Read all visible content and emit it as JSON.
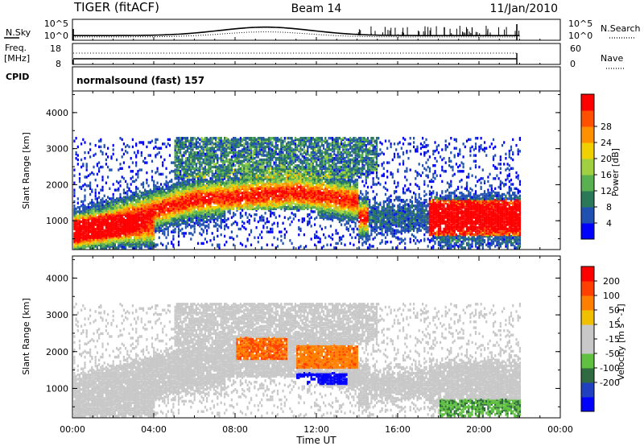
{
  "header": {
    "title_left": "TIGER (fitACF)",
    "title_center": "Beam 14",
    "title_right": "11/Jan/2010"
  },
  "top_panels": {
    "nsky_label": "N.Sky",
    "nsky_ticks": [
      "10^5",
      "10^0"
    ],
    "nsearch_label": "N.Search",
    "nsearch_ticks": [
      "10^5",
      "10^0"
    ],
    "freq_label_1": "Freq.",
    "freq_label_2": "[MHz]",
    "freq_ticks": [
      "18",
      "8"
    ],
    "nave_label": "Nave",
    "nave_ticks": [
      "60",
      "0"
    ],
    "cpid_label": "CPID",
    "cpid_value": "normalsound (fast) 157"
  },
  "colors": {
    "power_scale": [
      "#0000ff",
      "#2050b0",
      "#2a7a5a",
      "#58b050",
      "#a0d040",
      "#f0d000",
      "#ff9000",
      "#ff5000",
      "#ff0000"
    ],
    "velocity_scale": [
      "#0000ff",
      "#2040c0",
      "#306a40",
      "#60c040",
      "#c8c8c8",
      "#c8c8c8",
      "#f0c000",
      "#ff8000",
      "#ff4000",
      "#ff0000"
    ]
  },
  "chart_data": [
    {
      "type": "heatmap",
      "title": "",
      "xlabel": "Time UT",
      "ylabel": "Slant Range [km]",
      "x_ticks": [
        "00:00",
        "04:00",
        "08:00",
        "12:00",
        "16:00",
        "20:00",
        "00:00"
      ],
      "y_ticks": [
        "1000",
        "2000",
        "3000",
        "4000"
      ],
      "xlim": [
        0,
        24
      ],
      "ylim": [
        200,
        4600
      ],
      "colorbar": {
        "label": "Power [dB]",
        "ticks": [
          "4",
          "8",
          "12",
          "16",
          "20",
          "24",
          "28"
        ],
        "range": [
          0,
          32
        ]
      },
      "data_coverage_end_hour": 22
    },
    {
      "type": "heatmap",
      "title": "",
      "xlabel": "Time UT",
      "ylabel": "Slant Range [km]",
      "x_ticks": [
        "00:00",
        "04:00",
        "08:00",
        "12:00",
        "16:00",
        "20:00",
        "00:00"
      ],
      "y_ticks": [
        "1000",
        "2000",
        "3000",
        "4000"
      ],
      "xlim": [
        0,
        24
      ],
      "ylim": [
        200,
        4600
      ],
      "colorbar": {
        "label": "Velocity [m s^-1]",
        "ticks": [
          "200",
          "100",
          "50",
          "15",
          "-15",
          "-50",
          "-100",
          "-200"
        ],
        "range": [
          -250,
          250
        ]
      },
      "data_coverage_end_hour": 22
    }
  ]
}
